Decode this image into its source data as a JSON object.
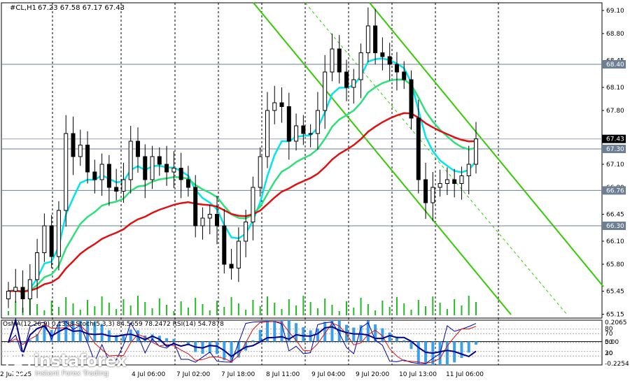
{
  "header": {
    "symbol": "#CL,H1",
    "ohlc": "67.23 67.58 67.17 67.43"
  },
  "indicator_header": "OsMA(12,26,9) 0.1338  Stoch(5,3,3) 84.5659 78.2472  RSI(14) 54.7878",
  "watermark": {
    "brand": "instaforex",
    "slogan": "Instant Forex Trading"
  },
  "colors": {
    "bull": "#000000",
    "bear": "#000000",
    "ema_fast": "#00e5ee",
    "ema_mid": "#2ee07a",
    "ema_slow": "#e01010",
    "channel": "#33cc00",
    "hline": "#6d7f93",
    "tag_bg": "#6d7f93",
    "price_tag_bg": "#000000",
    "osma": "#3aa0e8",
    "stoch_main": "#0000aa",
    "stoch_signal": "#e01010",
    "volume": "#22bb22"
  },
  "chart_data": {
    "type": "candlestick",
    "symbol": "#CL",
    "timeframe": "H1",
    "ylim": [
      65.1,
      69.2
    ],
    "y_ticks": [
      69.1,
      68.8,
      68.45,
      68.1,
      67.8,
      67.45,
      67.1,
      66.8,
      66.45,
      66.1,
      65.8,
      65.45,
      65.15
    ],
    "x_ticks": [
      "2 Jul 2025",
      "4 Jul 06:00",
      "7 Jul 02:00",
      "7 Jul 18:00",
      "8 Jul 11:00",
      "9 Jul 04:00",
      "9 Jul 20:00",
      "10 Jul 13:00",
      "11 Jul 06:00"
    ],
    "last_price": 67.43,
    "horizontal_levels": [
      68.4,
      67.3,
      66.76,
      66.3
    ],
    "price_tags": [
      "67.43",
      "68.40",
      "67.30",
      "66.76",
      "66.30"
    ],
    "closes": [
      65.45,
      65.5,
      65.35,
      65.6,
      65.95,
      66.3,
      65.9,
      66.5,
      67.5,
      67.2,
      67.35,
      67.0,
      66.9,
      67.1,
      66.8,
      66.75,
      66.9,
      67.4,
      67.2,
      66.9,
      67.2,
      67.1,
      67.0,
      67.05,
      66.9,
      66.8,
      66.3,
      66.4,
      66.45,
      66.3,
      65.8,
      65.75,
      66.1,
      66.35,
      66.8,
      67.2,
      67.8,
      67.9,
      67.85,
      67.4,
      67.6,
      67.5,
      67.5,
      67.8,
      68.3,
      68.6,
      68.3,
      68.1,
      68.2,
      68.55,
      68.9,
      68.55,
      68.5,
      68.4,
      68.3,
      68.2,
      67.7,
      66.9,
      66.6,
      66.8,
      66.85,
      66.9,
      66.85,
      66.95,
      67.1,
      67.43
    ],
    "indicators": {
      "osma": {
        "params": "12,26,9",
        "value": 0.1338,
        "ylim": [
          -0.2254,
          0.2065
        ]
      },
      "stoch": {
        "params": "5,3,3",
        "main": 84.5659,
        "signal": 78.2472,
        "levels": [
          80,
          50,
          20
        ]
      },
      "rsi": {
        "params": "14",
        "value": 54.7878,
        "levels": [
          70,
          30
        ]
      }
    },
    "indicator_ticks": [
      "0.2065",
      "80",
      "70",
      "50",
      "0.00",
      "30",
      "20",
      "-0.2254"
    ]
  }
}
